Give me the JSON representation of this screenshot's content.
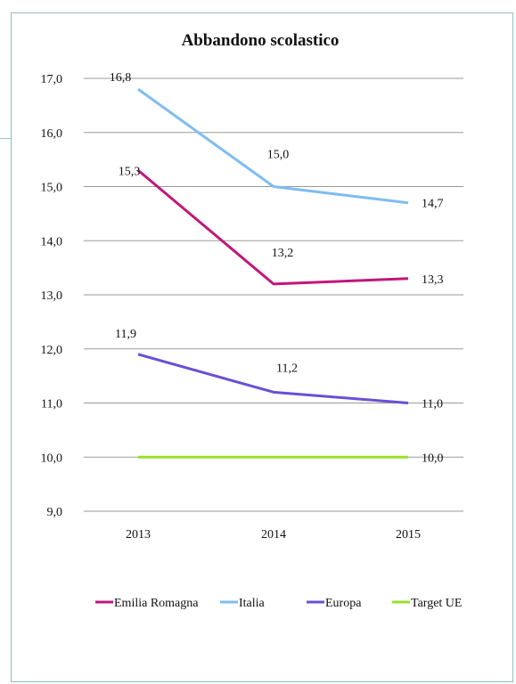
{
  "chart_data": {
    "type": "line",
    "title": "Abbandono scolastico",
    "categories": [
      "2013",
      "2014",
      "2015"
    ],
    "ylim": [
      9.0,
      17.0
    ],
    "yticks": [
      "9,0",
      "10,0",
      "11,0",
      "12,0",
      "13,0",
      "14,0",
      "15,0",
      "16,0",
      "17,0"
    ],
    "grid": true,
    "legend_position": "bottom",
    "series": [
      {
        "name": "Emilia Romagna",
        "color": "#c0177a",
        "values": [
          15.3,
          13.2,
          13.3
        ],
        "labels": [
          "15,3",
          "13,2",
          "13,3"
        ]
      },
      {
        "name": "Italia",
        "color": "#7fbdf0",
        "values": [
          16.8,
          15.0,
          14.7
        ],
        "labels": [
          "16,8",
          "15,0",
          "14,7"
        ]
      },
      {
        "name": "Europa",
        "color": "#6a4fd6",
        "values": [
          11.9,
          11.2,
          11.0
        ],
        "labels": [
          "11,9",
          "11,2",
          "11,0"
        ]
      },
      {
        "name": "Target UE",
        "color": "#99e02a",
        "values": [
          10.0,
          10.0,
          10.0
        ],
        "labels": [
          "",
          "",
          "10,0"
        ]
      }
    ]
  }
}
